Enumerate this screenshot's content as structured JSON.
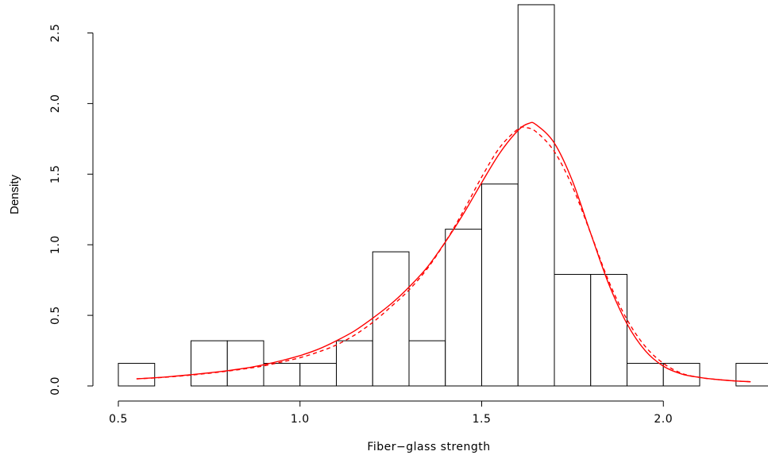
{
  "chart_data": {
    "type": "histogram",
    "xlabel": "Fiber−glass strength",
    "ylabel": "Density",
    "xlim": [
      0.5,
      2.25
    ],
    "ylim": [
      0,
      2.7
    ],
    "x_ticks": [
      0.5,
      1.0,
      1.5,
      2.0
    ],
    "x_tick_labels": [
      "0.5",
      "1.0",
      "1.5",
      "2.0"
    ],
    "y_ticks": [
      0.0,
      0.5,
      1.0,
      1.5,
      2.0,
      2.5
    ],
    "y_tick_labels": [
      "0.0",
      "0.5",
      "1.0",
      "1.5",
      "2.0",
      "2.5"
    ],
    "grid": false,
    "legend": "none",
    "bins": [
      {
        "start": 0.5,
        "end": 0.6,
        "density": 0.16
      },
      {
        "start": 0.6,
        "end": 0.7,
        "density": 0.0
      },
      {
        "start": 0.7,
        "end": 0.8,
        "density": 0.32
      },
      {
        "start": 0.8,
        "end": 0.9,
        "density": 0.32
      },
      {
        "start": 0.9,
        "end": 1.0,
        "density": 0.16
      },
      {
        "start": 1.0,
        "end": 1.1,
        "density": 0.16
      },
      {
        "start": 1.1,
        "end": 1.2,
        "density": 0.32
      },
      {
        "start": 1.2,
        "end": 1.3,
        "density": 0.95
      },
      {
        "start": 1.3,
        "end": 1.4,
        "density": 0.32
      },
      {
        "start": 1.4,
        "end": 1.5,
        "density": 1.11
      },
      {
        "start": 1.5,
        "end": 1.6,
        "density": 1.43
      },
      {
        "start": 1.6,
        "end": 1.7,
        "density": 2.7
      },
      {
        "start": 1.7,
        "end": 1.8,
        "density": 0.79
      },
      {
        "start": 1.8,
        "end": 1.9,
        "density": 0.79
      },
      {
        "start": 1.9,
        "end": 2.0,
        "density": 0.16
      },
      {
        "start": 2.0,
        "end": 2.1,
        "density": 0.16
      },
      {
        "start": 2.1,
        "end": 2.2,
        "density": 0.0
      },
      {
        "start": 2.2,
        "end": 2.3,
        "density": 0.16
      }
    ],
    "series": [
      {
        "style": "solid",
        "color": "#ff0000",
        "x": [
          0.55,
          0.6,
          0.65,
          0.7,
          0.75,
          0.8,
          0.85,
          0.9,
          0.95,
          1.0,
          1.05,
          1.1,
          1.15,
          1.2,
          1.25,
          1.3,
          1.35,
          1.4,
          1.45,
          1.5,
          1.55,
          1.6,
          1.63,
          1.65,
          1.7,
          1.75,
          1.8,
          1.85,
          1.9,
          1.95,
          2.0,
          2.05,
          2.1,
          2.15,
          2.2,
          2.24
        ],
        "y": [
          0.05,
          0.058,
          0.068,
          0.08,
          0.093,
          0.108,
          0.126,
          0.15,
          0.18,
          0.215,
          0.26,
          0.32,
          0.39,
          0.48,
          0.58,
          0.7,
          0.84,
          1.02,
          1.22,
          1.44,
          1.65,
          1.81,
          1.86,
          1.85,
          1.72,
          1.45,
          1.08,
          0.72,
          0.44,
          0.25,
          0.14,
          0.085,
          0.06,
          0.045,
          0.035,
          0.03
        ]
      },
      {
        "style": "dashed",
        "color": "#ff0000",
        "x": [
          0.55,
          0.6,
          0.65,
          0.7,
          0.75,
          0.8,
          0.85,
          0.9,
          0.95,
          1.0,
          1.05,
          1.1,
          1.15,
          1.2,
          1.25,
          1.3,
          1.35,
          1.4,
          1.45,
          1.5,
          1.55,
          1.6,
          1.62,
          1.65,
          1.7,
          1.75,
          1.8,
          1.85,
          1.9,
          1.95,
          2.0,
          2.05,
          2.1,
          2.15,
          2.2,
          2.24
        ],
        "y": [
          0.05,
          0.057,
          0.066,
          0.077,
          0.09,
          0.105,
          0.122,
          0.142,
          0.17,
          0.2,
          0.24,
          0.29,
          0.36,
          0.45,
          0.56,
          0.68,
          0.83,
          1.02,
          1.24,
          1.48,
          1.69,
          1.82,
          1.83,
          1.8,
          1.66,
          1.41,
          1.08,
          0.74,
          0.47,
          0.28,
          0.16,
          0.09,
          0.06,
          0.045,
          0.035,
          0.03
        ]
      }
    ]
  }
}
